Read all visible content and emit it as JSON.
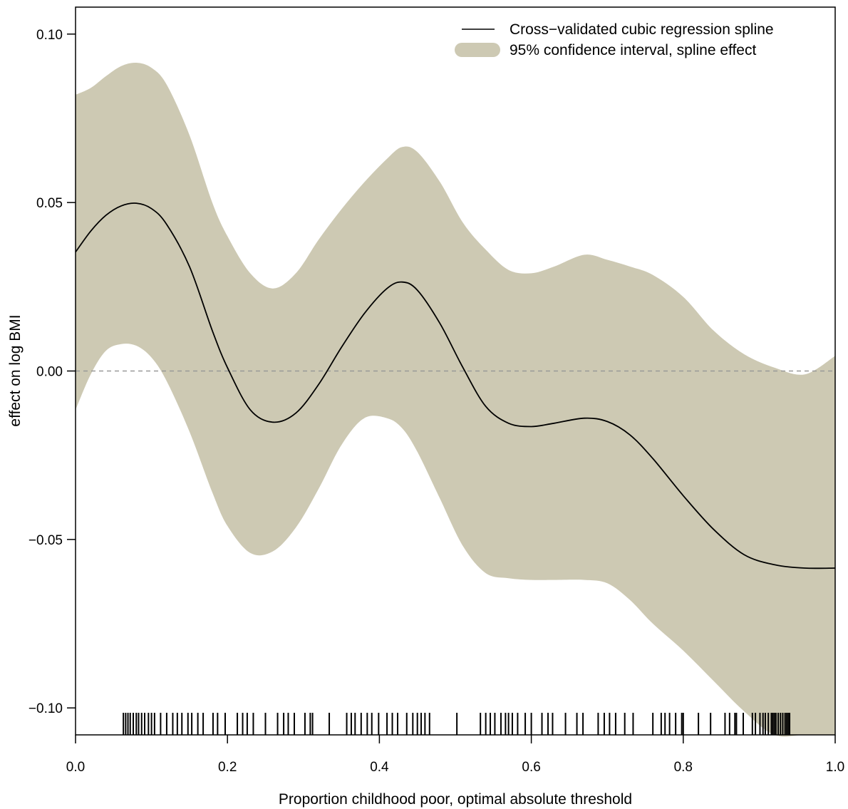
{
  "chart_data": {
    "type": "line",
    "xlabel": "Proportion childhood poor, optimal absolute threshold",
    "ylabel": "effect on log BMI",
    "xlim": [
      0,
      1
    ],
    "ylim": [
      -0.108,
      0.108
    ],
    "x_ticks": [
      0.0,
      0.2,
      0.4,
      0.6,
      0.8,
      1.0
    ],
    "x_tick_labels": [
      "0.0",
      "0.2",
      "0.4",
      "0.6",
      "0.8",
      "1.0"
    ],
    "y_ticks": [
      0.1,
      0.05,
      0.0,
      -0.05,
      -0.1
    ],
    "y_tick_labels": [
      "0.10",
      "0.05",
      "0.00",
      "−0.05",
      "−0.10"
    ],
    "reference_line": {
      "y": 0,
      "style": "dashed",
      "color": "#999999"
    },
    "legend": {
      "position": "top-right",
      "entries": [
        "Cross−validated cubic regression spline",
        "95% confidence interval, spline effect"
      ]
    },
    "colors": {
      "band": "#cdc9b3",
      "line": "#000000"
    },
    "series": [
      {
        "name": "Cross−validated cubic regression spline",
        "x": [
          0.0,
          0.02,
          0.04,
          0.06,
          0.08,
          0.1,
          0.12,
          0.15,
          0.18,
          0.2,
          0.23,
          0.26,
          0.29,
          0.32,
          0.35,
          0.38,
          0.41,
          0.43,
          0.45,
          0.48,
          0.51,
          0.54,
          0.57,
          0.6,
          0.63,
          0.67,
          0.7,
          0.73,
          0.76,
          0.8,
          0.84,
          0.88,
          0.92,
          0.96,
          1.0
        ],
        "y": [
          0.0353,
          0.0415,
          0.0462,
          0.049,
          0.0498,
          0.0482,
          0.0435,
          0.031,
          0.012,
          0.001,
          -0.0115,
          -0.0152,
          -0.0125,
          -0.004,
          0.007,
          0.017,
          0.0245,
          0.0264,
          0.024,
          0.014,
          0.001,
          -0.0105,
          -0.0155,
          -0.0165,
          -0.0155,
          -0.014,
          -0.015,
          -0.019,
          -0.026,
          -0.037,
          -0.047,
          -0.0545,
          -0.0575,
          -0.0585,
          -0.0585
        ]
      },
      {
        "name": "95% confidence interval, spline effect",
        "x": [
          0.0,
          0.02,
          0.04,
          0.06,
          0.08,
          0.1,
          0.12,
          0.15,
          0.18,
          0.2,
          0.23,
          0.26,
          0.29,
          0.32,
          0.35,
          0.38,
          0.41,
          0.43,
          0.45,
          0.48,
          0.51,
          0.54,
          0.57,
          0.6,
          0.63,
          0.67,
          0.7,
          0.73,
          0.76,
          0.8,
          0.84,
          0.88,
          0.92,
          0.96,
          1.0
        ],
        "upper": [
          0.082,
          0.084,
          0.0875,
          0.0905,
          0.0915,
          0.09,
          0.085,
          0.07,
          0.05,
          0.04,
          0.029,
          0.0245,
          0.029,
          0.039,
          0.048,
          0.056,
          0.063,
          0.0665,
          0.065,
          0.056,
          0.044,
          0.036,
          0.03,
          0.029,
          0.031,
          0.0345,
          0.033,
          0.031,
          0.0285,
          0.022,
          0.012,
          0.005,
          0.001,
          -0.001,
          0.0045
        ],
        "lower": [
          -0.0115,
          -0.001,
          0.006,
          0.008,
          0.0075,
          0.004,
          -0.003,
          -0.018,
          -0.036,
          -0.046,
          -0.054,
          -0.0535,
          -0.0465,
          -0.035,
          -0.022,
          -0.014,
          -0.014,
          -0.017,
          -0.024,
          -0.038,
          -0.052,
          -0.06,
          -0.0615,
          -0.062,
          -0.062,
          -0.062,
          -0.063,
          -0.068,
          -0.075,
          -0.083,
          -0.092,
          -0.101,
          -0.108,
          -0.108,
          -0.108
        ]
      }
    ],
    "rug": [
      0.063,
      0.066,
      0.069,
      0.072,
      0.076,
      0.08,
      0.083,
      0.087,
      0.091,
      0.096,
      0.1,
      0.104,
      0.112,
      0.12,
      0.128,
      0.134,
      0.14,
      0.148,
      0.153,
      0.161,
      0.168,
      0.181,
      0.187,
      0.197,
      0.213,
      0.22,
      0.226,
      0.234,
      0.25,
      0.266,
      0.274,
      0.28,
      0.288,
      0.302,
      0.309,
      0.312,
      0.334,
      0.357,
      0.363,
      0.368,
      0.376,
      0.384,
      0.39,
      0.399,
      0.41,
      0.417,
      0.424,
      0.436,
      0.444,
      0.45,
      0.455,
      0.46,
      0.466,
      0.502,
      0.533,
      0.54,
      0.546,
      0.552,
      0.56,
      0.566,
      0.57,
      0.575,
      0.582,
      0.592,
      0.6,
      0.614,
      0.622,
      0.628,
      0.645,
      0.66,
      0.668,
      0.688,
      0.696,
      0.703,
      0.711,
      0.723,
      0.734,
      0.76,
      0.771,
      0.776,
      0.782,
      0.79,
      0.798,
      0.8,
      0.82,
      0.836,
      0.855,
      0.861,
      0.868,
      0.87,
      0.879,
      0.891,
      0.895,
      0.901,
      0.905,
      0.908,
      0.912,
      0.916,
      0.918,
      0.92,
      0.922,
      0.925,
      0.928,
      0.931,
      0.934,
      0.936,
      0.938,
      0.94
    ]
  }
}
